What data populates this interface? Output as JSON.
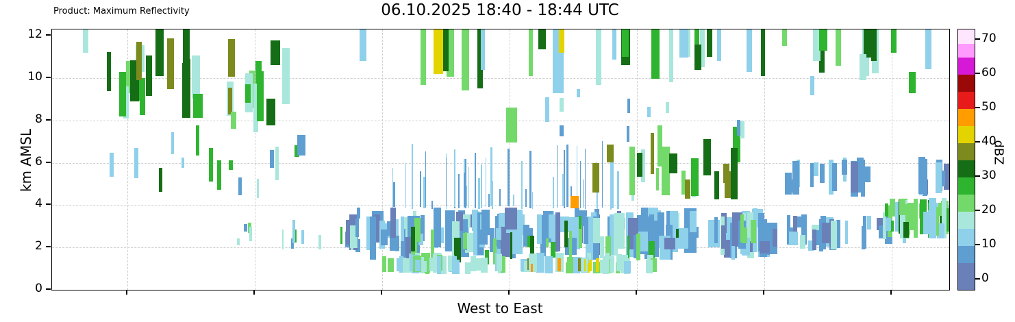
{
  "header": {
    "product_label": "Product: Maximum Reflectivity",
    "title": "06.10.2025 18:40 - 18:44 UTC"
  },
  "axes": {
    "y_label": "km AMSL",
    "x_label": "West to East",
    "y_ticks": [
      0,
      2,
      4,
      6,
      8,
      10,
      12
    ],
    "y_range": [
      0,
      12.3
    ]
  },
  "colorbar": {
    "label": "dBZ",
    "ticks": [
      0,
      10,
      20,
      30,
      40,
      50,
      60,
      70
    ],
    "range": [
      -3,
      73
    ],
    "segments": [
      {
        "from": -3,
        "to": 5,
        "color": "#6a80b8"
      },
      {
        "from": 5,
        "to": 10,
        "color": "#5f9ed1"
      },
      {
        "from": 10,
        "to": 15,
        "color": "#8fd0ea"
      },
      {
        "from": 15,
        "to": 20,
        "color": "#a9e7dc"
      },
      {
        "from": 20,
        "to": 25,
        "color": "#74d96b"
      },
      {
        "from": 25,
        "to": 30,
        "color": "#2eb42e"
      },
      {
        "from": 30,
        "to": 35,
        "color": "#156e15"
      },
      {
        "from": 35,
        "to": 40,
        "color": "#7d8a1e"
      },
      {
        "from": 40,
        "to": 45,
        "color": "#e3d400"
      },
      {
        "from": 45,
        "to": 50,
        "color": "#ff9c00"
      },
      {
        "from": 50,
        "to": 55,
        "color": "#e81b1b"
      },
      {
        "from": 55,
        "to": 60,
        "color": "#9b0808"
      },
      {
        "from": 60,
        "to": 65,
        "color": "#d619d6"
      },
      {
        "from": 65,
        "to": 69,
        "color": "#ff9aff"
      },
      {
        "from": 69,
        "to": 73,
        "color": "#ffe6ff"
      }
    ]
  },
  "chart_data": {
    "type": "heatmap",
    "title": "06.10.2025 18:40 - 18:44 UTC",
    "product": "Maximum Reflectivity",
    "xlabel": "West to East",
    "ylabel": "km AMSL",
    "ylim": [
      0,
      12.3
    ],
    "units": "dBZ",
    "value_range_visible": [
      0,
      50
    ],
    "seed": 1337,
    "description": "Vertical cross-section of maximum radar reflectivity (dBZ) vs altitude; scattered convective cells aloft (8-12 km), dense stratiform low-level echo band (1-4 km) across the central-eastern half, thin vertical spikes mid-domain, embedded convective cores up to 45-50 dBZ near bottom center.",
    "bands": [
      {
        "name": "upper-left-cells",
        "x": [
          0.045,
          0.31
        ],
        "z": [
          7.3,
          12.3
        ],
        "len": [
          0.9,
          2.8
        ],
        "count": 26,
        "width": [
          6,
          15
        ],
        "dbz": [
          15,
          20,
          25,
          30,
          30,
          35
        ],
        "anchor": "free"
      },
      {
        "name": "top-hang-mid",
        "x": [
          0.3,
          0.78
        ],
        "z": [
          8.9,
          12.3
        ],
        "len": [
          0.8,
          3.0
        ],
        "count": 20,
        "width": [
          5,
          14
        ],
        "dbz": [
          10,
          15,
          20,
          25,
          30
        ],
        "anchor": "top"
      },
      {
        "name": "top-hang-right",
        "x": [
          0.78,
          0.985
        ],
        "z": [
          9.4,
          12.3
        ],
        "len": [
          0.6,
          2.4
        ],
        "count": 10,
        "width": [
          5,
          12
        ],
        "dbz": [
          10,
          15,
          20,
          25,
          30
        ],
        "anchor": "top"
      },
      {
        "name": "left-mid-sparse",
        "x": [
          0.06,
          0.27
        ],
        "z": [
          4.2,
          8.0
        ],
        "len": [
          0.4,
          1.6
        ],
        "count": 14,
        "width": [
          3,
          9
        ],
        "dbz": [
          5,
          10,
          15,
          25,
          30
        ],
        "anchor": "free"
      },
      {
        "name": "central-spikes",
        "x": [
          0.37,
          0.63
        ],
        "z": [
          3.8,
          7.6
        ],
        "len": [
          0.3,
          3.2
        ],
        "count": 48,
        "width": [
          1,
          3
        ],
        "dbz": [
          5,
          5,
          10,
          10
        ],
        "anchor": "bottom"
      },
      {
        "name": "low-dense-mass",
        "x": [
          0.325,
          0.8
        ],
        "z": [
          1.4,
          3.9
        ],
        "len": [
          0.5,
          2.1
        ],
        "count": 170,
        "width": [
          4,
          18
        ],
        "dbz": [
          0,
          5,
          5,
          5,
          10,
          10,
          10,
          15
        ],
        "anchor": "free"
      },
      {
        "name": "greens-in-mass",
        "x": [
          0.4,
          0.78
        ],
        "z": [
          1.2,
          3.6
        ],
        "len": [
          0.4,
          1.6
        ],
        "count": 26,
        "width": [
          3,
          10
        ],
        "dbz": [
          20,
          25,
          30
        ],
        "anchor": "free"
      },
      {
        "name": "cyan-bottom-band",
        "x": [
          0.355,
          0.67
        ],
        "z": [
          0.75,
          1.75
        ],
        "len": [
          0.5,
          0.95
        ],
        "count": 70,
        "width": [
          5,
          14
        ],
        "dbz": [
          10,
          15,
          15,
          20
        ],
        "anchor": "bottom"
      },
      {
        "name": "warm-bottom-stripes",
        "x": [
          0.53,
          0.62
        ],
        "z": [
          0.8,
          1.5
        ],
        "len": [
          0.4,
          0.7
        ],
        "count": 10,
        "width": [
          2,
          5
        ],
        "dbz": [
          35,
          40,
          45,
          50
        ],
        "anchor": "bottom"
      },
      {
        "name": "mid-right-blues",
        "x": [
          0.8,
          0.96
        ],
        "z": [
          1.8,
          3.6
        ],
        "len": [
          0.4,
          1.6
        ],
        "count": 30,
        "width": [
          4,
          14
        ],
        "dbz": [
          0,
          5,
          5,
          10,
          15
        ],
        "anchor": "free"
      },
      {
        "name": "right-blue-cluster",
        "x": [
          0.815,
          0.92
        ],
        "z": [
          4.3,
          6.3
        ],
        "len": [
          0.5,
          1.8
        ],
        "count": 16,
        "width": [
          4,
          12
        ],
        "dbz": [
          0,
          5,
          5,
          10
        ],
        "anchor": "free"
      },
      {
        "name": "far-right-mixed",
        "x": [
          0.925,
          1.0
        ],
        "z": [
          2.4,
          4.35
        ],
        "len": [
          0.5,
          1.9
        ],
        "count": 40,
        "width": [
          4,
          12
        ],
        "dbz": [
          10,
          15,
          15,
          20,
          20,
          25,
          30
        ],
        "anchor": "free"
      },
      {
        "name": "center-right-greens",
        "x": [
          0.6,
          0.8
        ],
        "z": [
          4.2,
          8.0
        ],
        "len": [
          0.8,
          2.5
        ],
        "count": 18,
        "width": [
          4,
          12
        ],
        "dbz": [
          15,
          20,
          25,
          30,
          30,
          35
        ],
        "anchor": "free"
      },
      {
        "name": "low-left-bits",
        "x": [
          0.2,
          0.335
        ],
        "z": [
          1.8,
          3.4
        ],
        "len": [
          0.3,
          1.0
        ],
        "count": 10,
        "width": [
          2,
          6
        ],
        "dbz": [
          5,
          10,
          15,
          20,
          25
        ],
        "anchor": "free"
      },
      {
        "name": "mid-high-sparse",
        "x": [
          0.5,
          0.78
        ],
        "z": [
          6.8,
          9.5
        ],
        "len": [
          0.4,
          1.2
        ],
        "count": 10,
        "width": [
          3,
          8
        ],
        "dbz": [
          5,
          10,
          15
        ],
        "anchor": "free"
      },
      {
        "name": "far-right-blue-talls",
        "x": [
          0.955,
          0.995
        ],
        "z": [
          4.4,
          6.3
        ],
        "len": [
          0.6,
          1.8
        ],
        "count": 8,
        "width": [
          4,
          10
        ],
        "dbz": [
          0,
          5,
          10
        ],
        "anchor": "free"
      }
    ],
    "features": [
      {
        "x": 0.034,
        "w": 8,
        "z0": 11.2,
        "z1": 12.3,
        "dbz": 15
      },
      {
        "x": 0.075,
        "w": 10,
        "z0": 8.2,
        "z1": 10.3,
        "dbz": 25
      },
      {
        "x": 0.115,
        "w": 12,
        "z0": 10.1,
        "z1": 12.3,
        "dbz": 30
      },
      {
        "x": 0.146,
        "w": 10,
        "z0": 10.9,
        "z1": 12.3,
        "dbz": 30
      },
      {
        "x": 0.199,
        "w": 8,
        "z0": 7.6,
        "z1": 8.4,
        "dbz": 20
      },
      {
        "x": 0.215,
        "w": 8,
        "z0": 8.85,
        "z1": 9.7,
        "dbz": 25
      },
      {
        "x": 0.273,
        "w": 12,
        "z0": 6.35,
        "z1": 7.3,
        "dbz": 5
      },
      {
        "x": 0.268,
        "w": 4,
        "z0": 2.2,
        "z1": 3.3,
        "dbz": 10
      },
      {
        "x": 0.297,
        "w": 4,
        "z0": 1.9,
        "z1": 2.6,
        "dbz": 15
      },
      {
        "x": 0.425,
        "w": 14,
        "z0": 10.2,
        "z1": 12.3,
        "dbz": 40
      },
      {
        "x": 0.436,
        "w": 7,
        "z0": 10.4,
        "z1": 12.3,
        "dbz": 30
      },
      {
        "x": 0.506,
        "w": 16,
        "z0": 6.95,
        "z1": 8.6,
        "dbz": 20
      },
      {
        "x": 0.558,
        "w": 16,
        "z0": 9.3,
        "z1": 12.3,
        "dbz": 10
      },
      {
        "x": 0.565,
        "w": 8,
        "z0": 11.2,
        "z1": 12.3,
        "dbz": 40
      },
      {
        "x": 0.578,
        "w": 12,
        "z0": 3.85,
        "z1": 4.45,
        "dbz": 45
      },
      {
        "x": 0.602,
        "w": 10,
        "z0": 4.6,
        "z1": 6.0,
        "dbz": 35
      },
      {
        "x": 0.635,
        "w": 10,
        "z0": 11.0,
        "z1": 12.3,
        "dbz": 25
      },
      {
        "x": 0.688,
        "w": 12,
        "z0": 5.5,
        "z1": 6.45,
        "dbz": 30
      },
      {
        "x": 0.705,
        "w": 8,
        "z0": 4.3,
        "z1": 5.2,
        "dbz": 35
      },
      {
        "x": 0.716,
        "w": 10,
        "z0": 10.4,
        "z1": 11.6,
        "dbz": 30
      },
      {
        "x": 0.73,
        "w": 8,
        "z0": 11.0,
        "z1": 12.3,
        "dbz": 30
      },
      {
        "x": 0.845,
        "w": 6,
        "z0": 9.2,
        "z1": 10.1,
        "dbz": 10
      },
      {
        "x": 0.873,
        "w": 8,
        "z0": 10.6,
        "z1": 12.3,
        "dbz": 20
      },
      {
        "x": 0.9,
        "w": 10,
        "z0": 9.9,
        "z1": 11.15,
        "dbz": 15
      },
      {
        "x": 0.935,
        "w": 8,
        "z0": 11.2,
        "z1": 12.3,
        "dbz": 25
      },
      {
        "x": 0.955,
        "w": 10,
        "z0": 9.3,
        "z1": 10.3,
        "dbz": 25
      }
    ]
  }
}
